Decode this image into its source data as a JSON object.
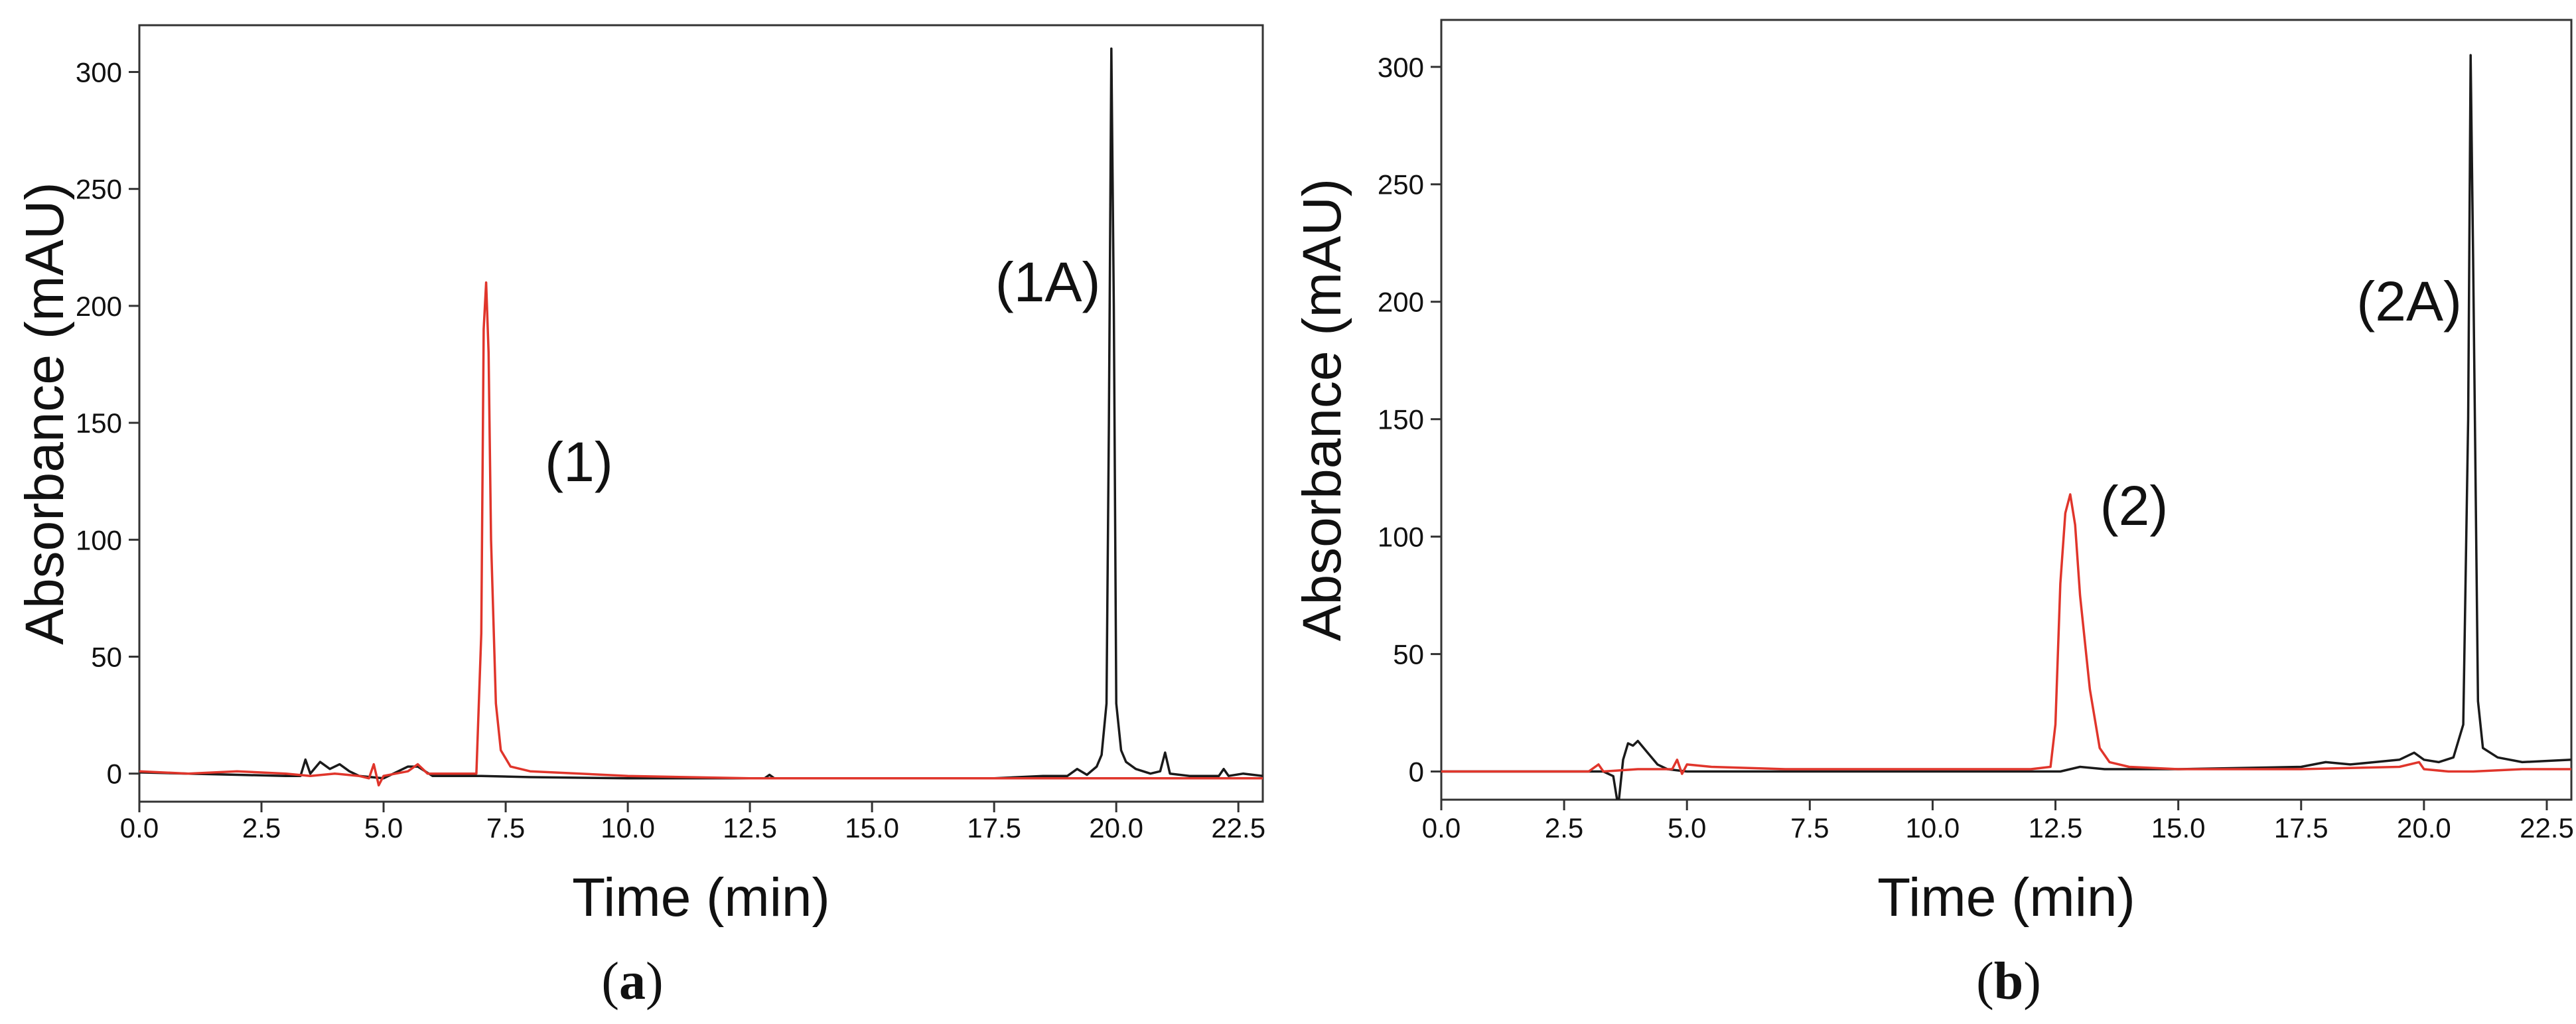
{
  "colors": {
    "series_black": "#1a1a1a",
    "series_red": "#e0352b",
    "axis": "#333333"
  },
  "chart_data": [
    {
      "type": "line",
      "caption_letter": "a",
      "xlabel": "Time (min)",
      "ylabel": "Absorbance (mAU)",
      "xlim": [
        0,
        23
      ],
      "ylim": [
        -12,
        320
      ],
      "xticks": [
        0.0,
        2.5,
        5.0,
        7.5,
        10.0,
        12.5,
        15.0,
        17.5,
        20.0,
        22.5
      ],
      "xtick_labels": [
        "0.0",
        "2.5",
        "5.0",
        "7.5",
        "10.0",
        "12.5",
        "15.0",
        "17.5",
        "20.0",
        "22.5"
      ],
      "yticks": [
        0,
        50,
        100,
        150,
        200,
        250,
        300
      ],
      "ytick_labels": [
        "0",
        "50",
        "100",
        "150",
        "200",
        "250",
        "300"
      ],
      "grid": false,
      "annotations": [
        {
          "text": "(1)",
          "x": 9.0,
          "y": 125
        },
        {
          "text": "(1A)",
          "x": 18.6,
          "y": 202
        }
      ],
      "series": [
        {
          "color": "#1a1a1a",
          "points": [
            [
              0,
              0.5
            ],
            [
              1,
              0
            ],
            [
              2,
              -0.5
            ],
            [
              3,
              -1
            ],
            [
              3.3,
              -1
            ],
            [
              3.4,
              6
            ],
            [
              3.5,
              0
            ],
            [
              3.7,
              5
            ],
            [
              3.9,
              2
            ],
            [
              4.1,
              4
            ],
            [
              4.3,
              1
            ],
            [
              4.5,
              -1
            ],
            [
              5.0,
              -2
            ],
            [
              5.3,
              1
            ],
            [
              5.5,
              3
            ],
            [
              5.7,
              3
            ],
            [
              6.0,
              -1
            ],
            [
              7.0,
              -1
            ],
            [
              8,
              -1.5
            ],
            [
              10,
              -2
            ],
            [
              12,
              -2
            ],
            [
              12.8,
              -2
            ],
            [
              12.9,
              -0.5
            ],
            [
              13.0,
              -2
            ],
            [
              15,
              -2
            ],
            [
              17.5,
              -2
            ],
            [
              18.5,
              -1
            ],
            [
              19.0,
              -1
            ],
            [
              19.2,
              2
            ],
            [
              19.4,
              -0.5
            ],
            [
              19.6,
              3
            ],
            [
              19.7,
              8
            ],
            [
              19.8,
              30
            ],
            [
              19.85,
              150
            ],
            [
              19.9,
              310
            ],
            [
              19.95,
              200
            ],
            [
              20.0,
              30
            ],
            [
              20.1,
              10
            ],
            [
              20.2,
              5
            ],
            [
              20.4,
              2
            ],
            [
              20.7,
              0
            ],
            [
              20.9,
              1
            ],
            [
              21.0,
              9
            ],
            [
              21.1,
              0
            ],
            [
              21.5,
              -1
            ],
            [
              22.1,
              -1
            ],
            [
              22.2,
              2
            ],
            [
              22.3,
              -1
            ],
            [
              22.6,
              0
            ],
            [
              23,
              -1
            ]
          ]
        },
        {
          "color": "#e0352b",
          "points": [
            [
              0,
              1
            ],
            [
              1,
              0
            ],
            [
              2,
              1
            ],
            [
              3,
              0
            ],
            [
              3.5,
              -1
            ],
            [
              4.0,
              0
            ],
            [
              4.5,
              -1
            ],
            [
              4.7,
              -2
            ],
            [
              4.8,
              4
            ],
            [
              4.9,
              -5
            ],
            [
              5.0,
              -1
            ],
            [
              5.5,
              1
            ],
            [
              5.7,
              4
            ],
            [
              5.9,
              0
            ],
            [
              6.5,
              0
            ],
            [
              6.9,
              0
            ],
            [
              7.0,
              60
            ],
            [
              7.05,
              190
            ],
            [
              7.1,
              210
            ],
            [
              7.15,
              180
            ],
            [
              7.2,
              100
            ],
            [
              7.3,
              30
            ],
            [
              7.4,
              10
            ],
            [
              7.6,
              3
            ],
            [
              8,
              1
            ],
            [
              10,
              -1
            ],
            [
              12.5,
              -2
            ],
            [
              15,
              -2
            ],
            [
              17.5,
              -2
            ],
            [
              20,
              -2
            ],
            [
              22.5,
              -2
            ],
            [
              23,
              -2
            ]
          ]
        }
      ]
    },
    {
      "type": "line",
      "caption_letter": "b",
      "xlabel": "Time (min)",
      "ylabel": "Absorbance (mAU)",
      "xlim": [
        0,
        23
      ],
      "ylim": [
        -12,
        320
      ],
      "xticks": [
        0.0,
        2.5,
        5.0,
        7.5,
        10.0,
        12.5,
        15.0,
        17.5,
        20.0,
        22.5
      ],
      "xtick_labels": [
        "0.0",
        "2.5",
        "5.0",
        "7.5",
        "10.0",
        "12.5",
        "15.0",
        "17.5",
        "20.0",
        "22.5"
      ],
      "yticks": [
        0,
        50,
        100,
        150,
        200,
        250,
        300
      ],
      "ytick_labels": [
        "0",
        "50",
        "100",
        "150",
        "200",
        "250",
        "300"
      ],
      "grid": false,
      "annotations": [
        {
          "text": "(2)",
          "x": 14.1,
          "y": 105
        },
        {
          "text": "(2A)",
          "x": 19.7,
          "y": 192
        }
      ],
      "series": [
        {
          "color": "#1a1a1a",
          "points": [
            [
              0,
              0
            ],
            [
              2,
              0
            ],
            [
              3.0,
              0
            ],
            [
              3.3,
              0
            ],
            [
              3.5,
              -2
            ],
            [
              3.6,
              -15
            ],
            [
              3.7,
              5
            ],
            [
              3.8,
              12
            ],
            [
              3.9,
              11
            ],
            [
              4.0,
              13
            ],
            [
              4.2,
              8
            ],
            [
              4.4,
              3
            ],
            [
              4.6,
              1
            ],
            [
              5,
              0
            ],
            [
              7,
              0
            ],
            [
              10,
              0
            ],
            [
              12,
              0
            ],
            [
              12.6,
              0
            ],
            [
              12.8,
              1
            ],
            [
              13,
              2
            ],
            [
              13.5,
              1
            ],
            [
              15,
              1
            ],
            [
              17.5,
              2
            ],
            [
              18,
              4
            ],
            [
              18.5,
              3
            ],
            [
              19.0,
              4
            ],
            [
              19.5,
              5
            ],
            [
              19.8,
              8
            ],
            [
              20.0,
              5
            ],
            [
              20.3,
              4
            ],
            [
              20.6,
              6
            ],
            [
              20.8,
              20
            ],
            [
              20.9,
              150
            ],
            [
              20.95,
              305
            ],
            [
              21.0,
              220
            ],
            [
              21.1,
              30
            ],
            [
              21.2,
              10
            ],
            [
              21.5,
              6
            ],
            [
              22,
              4
            ],
            [
              23,
              5
            ]
          ]
        },
        {
          "color": "#e0352b",
          "points": [
            [
              0,
              0
            ],
            [
              2,
              0
            ],
            [
              3.0,
              0
            ],
            [
              3.2,
              3
            ],
            [
              3.3,
              0
            ],
            [
              4,
              1
            ],
            [
              4.7,
              1
            ],
            [
              4.8,
              5
            ],
            [
              4.9,
              -1
            ],
            [
              5.0,
              3
            ],
            [
              5.5,
              2
            ],
            [
              7,
              1
            ],
            [
              10,
              1
            ],
            [
              12,
              1
            ],
            [
              12.4,
              2
            ],
            [
              12.5,
              20
            ],
            [
              12.6,
              80
            ],
            [
              12.7,
              110
            ],
            [
              12.8,
              118
            ],
            [
              12.9,
              105
            ],
            [
              13.0,
              75
            ],
            [
              13.2,
              35
            ],
            [
              13.4,
              10
            ],
            [
              13.6,
              4
            ],
            [
              14,
              2
            ],
            [
              15,
              1
            ],
            [
              17.5,
              1
            ],
            [
              19.5,
              2
            ],
            [
              19.9,
              4
            ],
            [
              20.0,
              1
            ],
            [
              20.5,
              0
            ],
            [
              21,
              0
            ],
            [
              22,
              1
            ],
            [
              23,
              1
            ]
          ]
        }
      ]
    }
  ]
}
